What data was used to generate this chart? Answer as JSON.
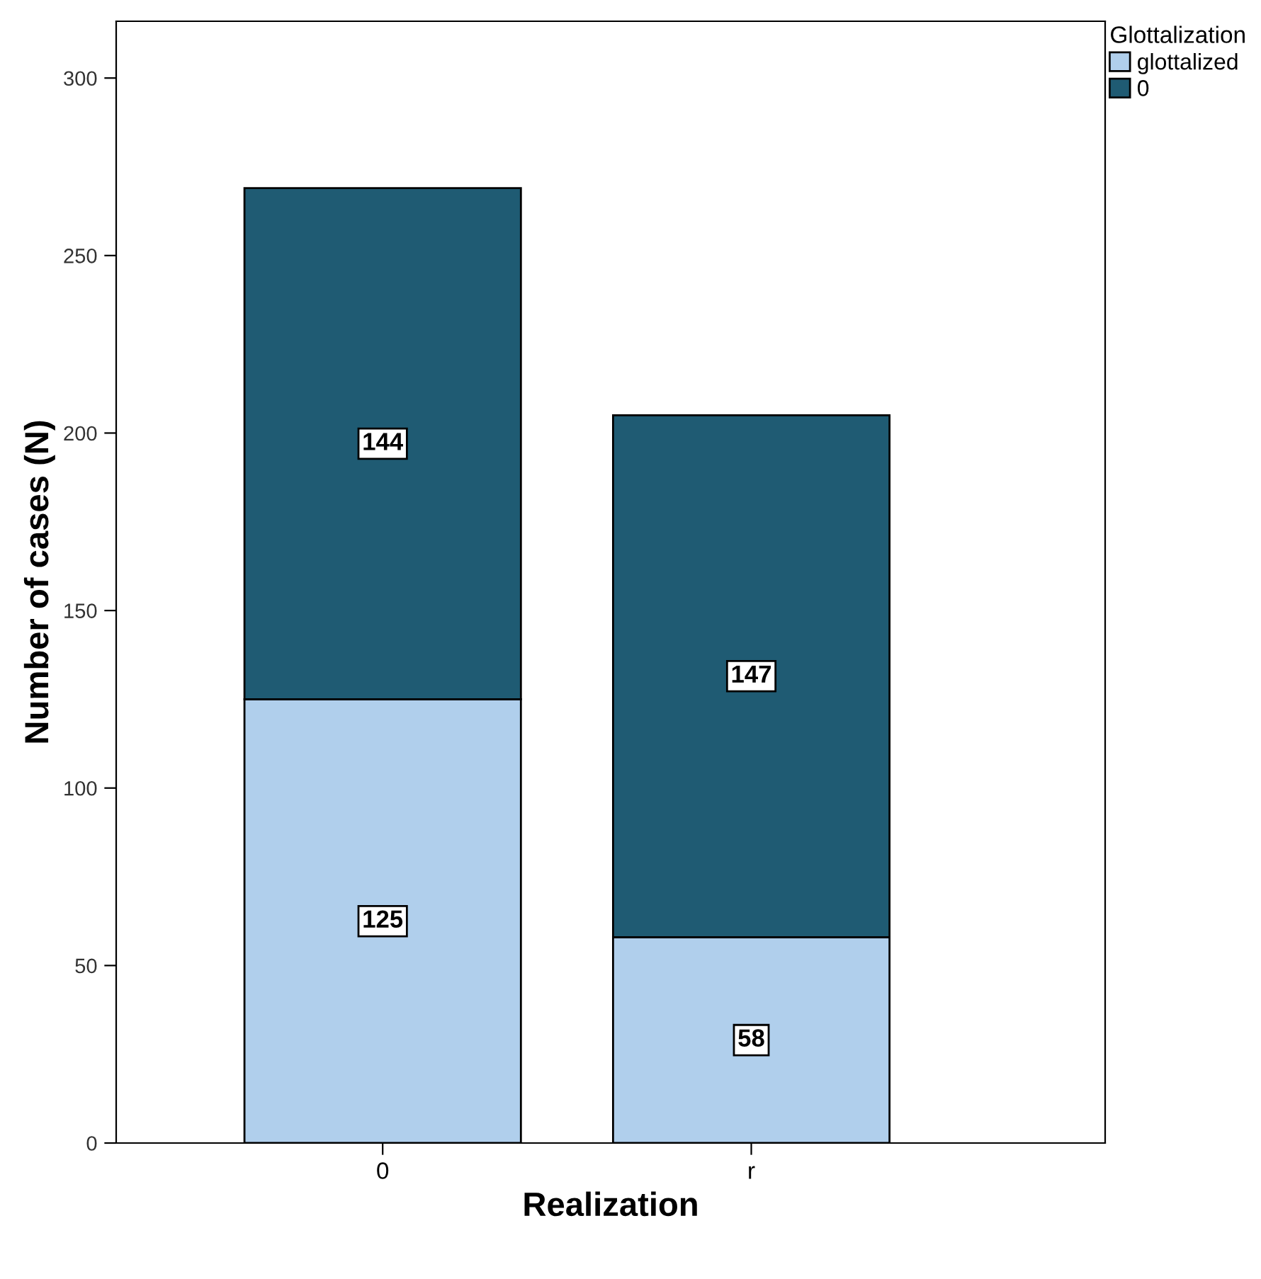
{
  "chart_data": {
    "type": "bar",
    "stacked": true,
    "xlabel": "Realization",
    "ylabel": "Number of cases (N)",
    "legend_title": "Glottalization",
    "categories": [
      "0",
      "r"
    ],
    "series": [
      {
        "name": "glottalized",
        "color": "#b0cfec",
        "values": [
          125,
          58
        ]
      },
      {
        "name": "0",
        "color": "#1f5b73",
        "values": [
          144,
          147
        ]
      }
    ],
    "ylim": [
      0,
      316
    ],
    "yticks": [
      0,
      50,
      100,
      150,
      200,
      250,
      300
    ],
    "grid": false,
    "legend": "top right",
    "data_labels": true
  }
}
